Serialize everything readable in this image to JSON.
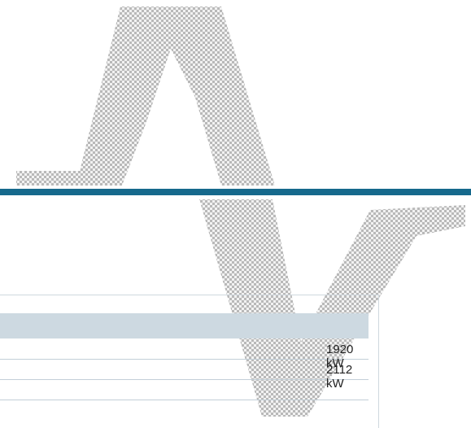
{
  "table": {
    "rows": [
      [
        "1920 kW"
      ],
      [
        "2112 kW"
      ]
    ]
  }
}
